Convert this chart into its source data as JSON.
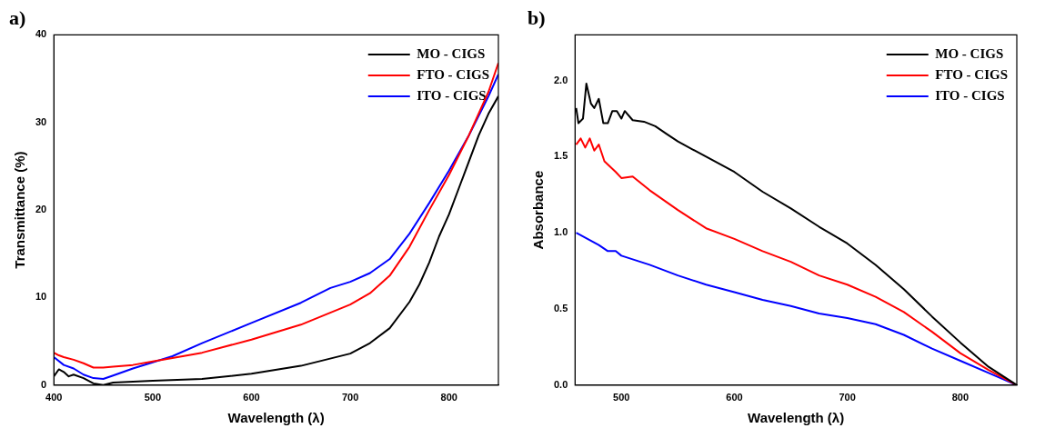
{
  "chart_data": [
    {
      "type": "line",
      "title": "a)",
      "xlabel": "Wavelength (λ)",
      "ylabel": "Transmittance (%)",
      "xlim": [
        400,
        850
      ],
      "ylim": [
        0,
        40
      ],
      "xticks": [
        400,
        500,
        600,
        700,
        800
      ],
      "yticks": [
        0,
        10,
        20,
        30,
        40
      ],
      "grid": false,
      "legend": "top right",
      "marker": "none",
      "line_style": "solid",
      "series": [
        {
          "name": "MO - CIGS",
          "color": "#000000",
          "x": [
            400,
            405,
            410,
            415,
            420,
            430,
            440,
            450,
            460,
            480,
            500,
            550,
            600,
            650,
            700,
            720,
            740,
            760,
            770,
            780,
            790,
            800,
            810,
            820,
            830,
            840,
            850
          ],
          "values": [
            1.0,
            1.8,
            1.5,
            1.0,
            1.2,
            0.8,
            0.2,
            0.0,
            0.3,
            0.4,
            0.5,
            0.7,
            1.3,
            2.2,
            3.6,
            4.8,
            6.5,
            9.5,
            11.5,
            14,
            17,
            19.5,
            22.5,
            25.5,
            28.5,
            31,
            33
          ]
        },
        {
          "name": "FTO - CIGS",
          "color": "#ff0000",
          "x": [
            400,
            405,
            410,
            420,
            430,
            440,
            450,
            460,
            480,
            500,
            520,
            550,
            600,
            650,
            700,
            720,
            740,
            760,
            780,
            800,
            820,
            840,
            850
          ],
          "values": [
            3.7,
            3.4,
            3.2,
            2.9,
            2.5,
            2.0,
            2.0,
            2.1,
            2.3,
            2.7,
            3.1,
            3.7,
            5.2,
            6.9,
            9.2,
            10.5,
            12.5,
            15.8,
            20,
            24,
            28.5,
            33.5,
            36.8
          ]
        },
        {
          "name": "ITO - CIGS",
          "color": "#0000ff",
          "x": [
            400,
            410,
            420,
            430,
            440,
            450,
            460,
            480,
            500,
            520,
            550,
            600,
            650,
            680,
            700,
            720,
            740,
            760,
            780,
            800,
            820,
            840,
            850
          ],
          "values": [
            3.2,
            2.3,
            1.9,
            1.2,
            0.8,
            0.7,
            1.1,
            1.9,
            2.6,
            3.3,
            4.8,
            7.1,
            9.4,
            11.1,
            11.8,
            12.8,
            14.4,
            17.3,
            20.8,
            24.5,
            28.5,
            33,
            35.5
          ]
        }
      ]
    },
    {
      "type": "line",
      "title": "b)",
      "xlabel": "Wavelength (λ)",
      "ylabel": "Absorbance",
      "xlim": [
        459,
        850
      ],
      "ylim": [
        0,
        2.3
      ],
      "xticks": [
        500,
        600,
        700,
        800
      ],
      "yticks": [
        {
          "value": 0,
          "label": "0.0"
        },
        {
          "value": 0.5,
          "label": "0.5"
        },
        {
          "value": 1,
          "label": "1.0"
        },
        {
          "value": 1.5,
          "label": "1.5"
        },
        {
          "value": 2,
          "label": "2.0"
        }
      ],
      "grid": false,
      "legend": "top right",
      "marker": "none",
      "line_style": "solid",
      "series": [
        {
          "name": "MO - CIGS",
          "color": "#000000",
          "x": [
            460,
            462,
            466,
            469,
            473,
            476,
            480,
            484,
            488,
            492,
            496,
            500,
            503,
            510,
            520,
            530,
            540,
            550,
            575,
            600,
            625,
            650,
            675,
            700,
            725,
            750,
            775,
            800,
            825,
            850
          ],
          "values": [
            1.82,
            1.72,
            1.75,
            1.98,
            1.85,
            1.82,
            1.88,
            1.72,
            1.72,
            1.8,
            1.8,
            1.75,
            1.8,
            1.74,
            1.73,
            1.7,
            1.65,
            1.6,
            1.5,
            1.4,
            1.27,
            1.16,
            1.04,
            0.93,
            0.79,
            0.63,
            0.45,
            0.28,
            0.12,
            0.0
          ]
        },
        {
          "name": "FTO - CIGS",
          "color": "#ff0000",
          "x": [
            460,
            464,
            468,
            472,
            476,
            480,
            485,
            495,
            500,
            510,
            525,
            550,
            575,
            600,
            625,
            650,
            675,
            700,
            725,
            750,
            775,
            800,
            825,
            850
          ],
          "values": [
            1.58,
            1.62,
            1.56,
            1.62,
            1.54,
            1.58,
            1.47,
            1.4,
            1.36,
            1.37,
            1.28,
            1.15,
            1.03,
            0.96,
            0.88,
            0.81,
            0.72,
            0.66,
            0.58,
            0.48,
            0.35,
            0.21,
            0.1,
            0.0
          ]
        },
        {
          "name": "ITO - CIGS",
          "color": "#0000ff",
          "x": [
            460,
            470,
            480,
            488,
            495,
            500,
            525,
            550,
            575,
            600,
            625,
            650,
            675,
            700,
            725,
            750,
            775,
            800,
            825,
            850
          ],
          "values": [
            1.0,
            0.96,
            0.92,
            0.88,
            0.88,
            0.85,
            0.79,
            0.72,
            0.66,
            0.61,
            0.56,
            0.52,
            0.47,
            0.44,
            0.4,
            0.33,
            0.24,
            0.16,
            0.08,
            0.0
          ]
        }
      ]
    }
  ]
}
